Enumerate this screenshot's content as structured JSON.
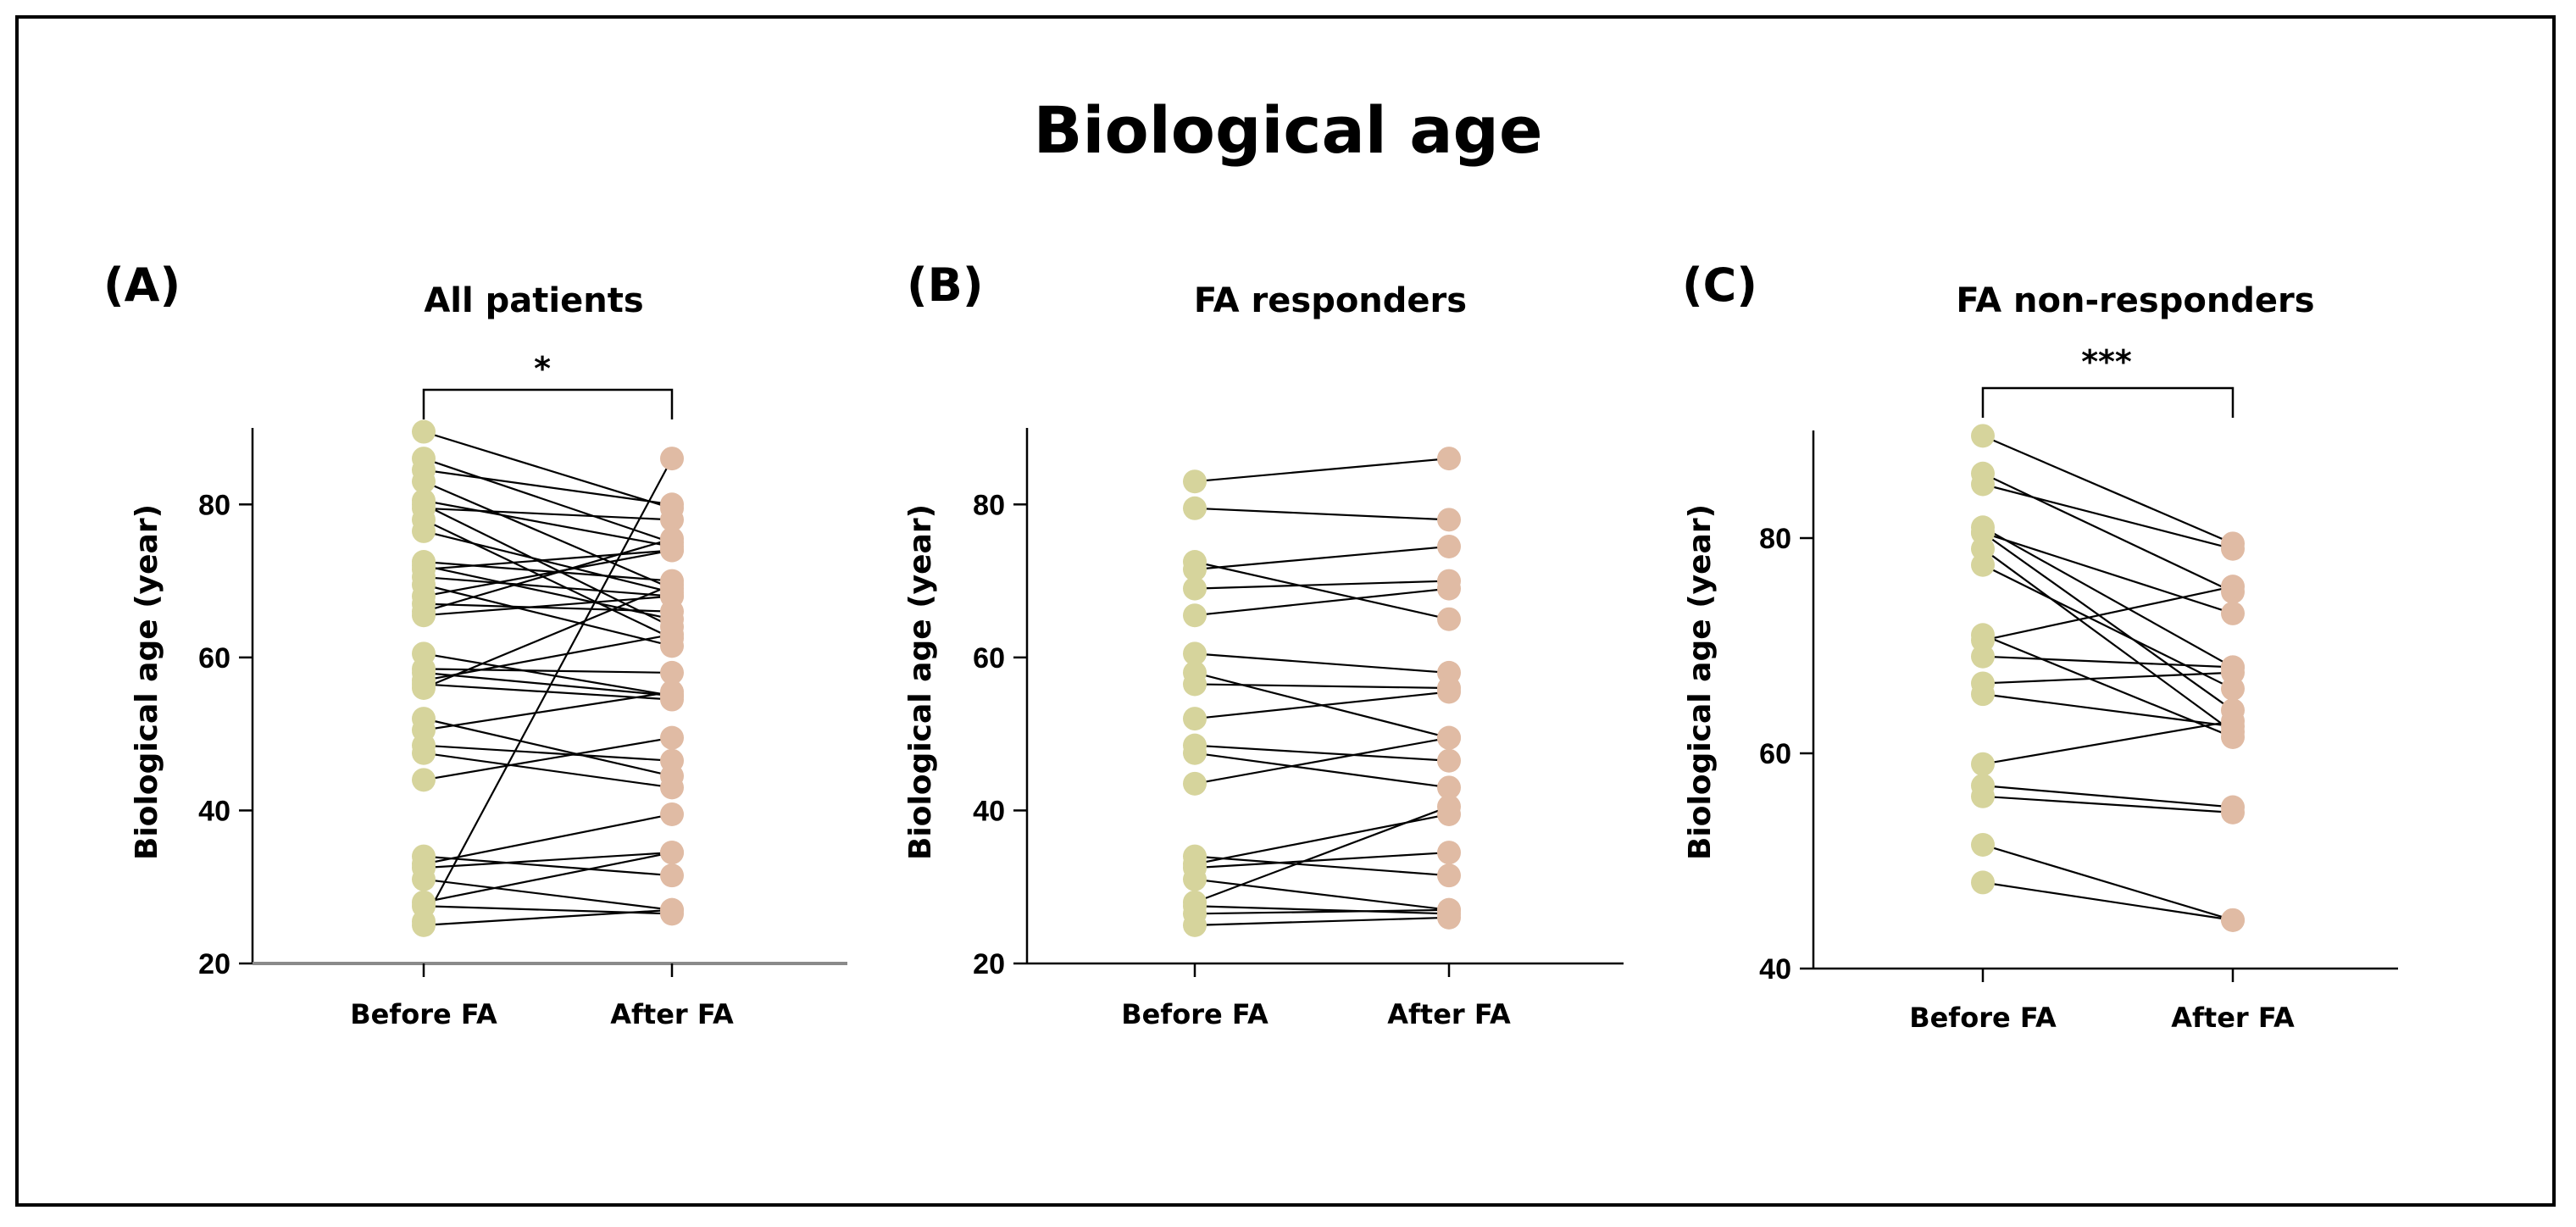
{
  "figure": {
    "title": "Biological age",
    "colors": {
      "before": "#d6d49c",
      "after": "#e0bba4",
      "line": "#000000"
    }
  },
  "chart_data": [
    {
      "type": "scatter",
      "panel_label": "(A)",
      "title": "All patients",
      "ylabel": "Biological age (year)",
      "categories": [
        "Before FA",
        "After FA"
      ],
      "ylim": [
        20,
        90
      ],
      "yticks": [
        20,
        40,
        60,
        80
      ],
      "significance": "*",
      "pairs": [
        [
          89.5,
          79.5
        ],
        [
          86,
          75
        ],
        [
          84.5,
          80
        ],
        [
          83,
          69
        ],
        [
          80.5,
          74.5
        ],
        [
          80,
          64
        ],
        [
          79.5,
          78
        ],
        [
          78,
          62.5
        ],
        [
          76.5,
          68.5
        ],
        [
          72.5,
          70
        ],
        [
          72,
          65
        ],
        [
          71.5,
          74
        ],
        [
          70.5,
          68
        ],
        [
          69.5,
          61.5
        ],
        [
          68,
          74
        ],
        [
          67,
          66
        ],
        [
          66,
          75.5
        ],
        [
          65.5,
          68
        ],
        [
          60.5,
          55
        ],
        [
          58.5,
          58
        ],
        [
          58,
          55
        ],
        [
          57,
          63
        ],
        [
          56.5,
          54.5
        ],
        [
          56,
          69.5
        ],
        [
          52,
          44.5
        ],
        [
          50.5,
          55.5
        ],
        [
          48.5,
          46.5
        ],
        [
          47.5,
          43
        ],
        [
          44,
          49.5
        ],
        [
          34,
          31.5
        ],
        [
          33,
          39.5
        ],
        [
          32.5,
          34.5
        ],
        [
          31,
          27
        ],
        [
          28,
          34.5
        ],
        [
          27.5,
          26.5
        ],
        [
          25.5,
          86
        ],
        [
          25,
          27
        ]
      ]
    },
    {
      "type": "scatter",
      "panel_label": "(B)",
      "title": "FA responders",
      "ylabel": "Biological age (year)",
      "categories": [
        "Before FA",
        "After FA"
      ],
      "ylim": [
        20,
        90
      ],
      "yticks": [
        20,
        40,
        60,
        80
      ],
      "significance": "",
      "pairs": [
        [
          83,
          86
        ],
        [
          79.5,
          78
        ],
        [
          72.5,
          65
        ],
        [
          71.5,
          74.5
        ],
        [
          69,
          70
        ],
        [
          65.5,
          69
        ],
        [
          60.5,
          58
        ],
        [
          58,
          49.5
        ],
        [
          56.5,
          56
        ],
        [
          52,
          55.5
        ],
        [
          48.5,
          46.5
        ],
        [
          47.5,
          43
        ],
        [
          43.5,
          49.5
        ],
        [
          34,
          31.5
        ],
        [
          33,
          39.5
        ],
        [
          32.5,
          34.5
        ],
        [
          31,
          27
        ],
        [
          28,
          40.5
        ],
        [
          27.5,
          26.5
        ],
        [
          26.5,
          27
        ],
        [
          25,
          26
        ]
      ]
    },
    {
      "type": "scatter",
      "panel_label": "(C)",
      "title": "FA non-responders",
      "ylabel": "Biological age (year)",
      "categories": [
        "Before FA",
        "After FA"
      ],
      "ylim": [
        40,
        90
      ],
      "yticks": [
        40,
        60,
        80
      ],
      "significance": "***",
      "pairs": [
        [
          89.5,
          79.5
        ],
        [
          86,
          75
        ],
        [
          85,
          79
        ],
        [
          81,
          68
        ],
        [
          80.5,
          73
        ],
        [
          80.5,
          64
        ],
        [
          79,
          62
        ],
        [
          77.5,
          66
        ],
        [
          71,
          61.5
        ],
        [
          70.5,
          75.5
        ],
        [
          69,
          68
        ],
        [
          66.5,
          67.5
        ],
        [
          65.5,
          62.5
        ],
        [
          59,
          63
        ],
        [
          57,
          55
        ],
        [
          56,
          54.5
        ],
        [
          51.5,
          44.5
        ],
        [
          48,
          44.5
        ]
      ]
    }
  ]
}
